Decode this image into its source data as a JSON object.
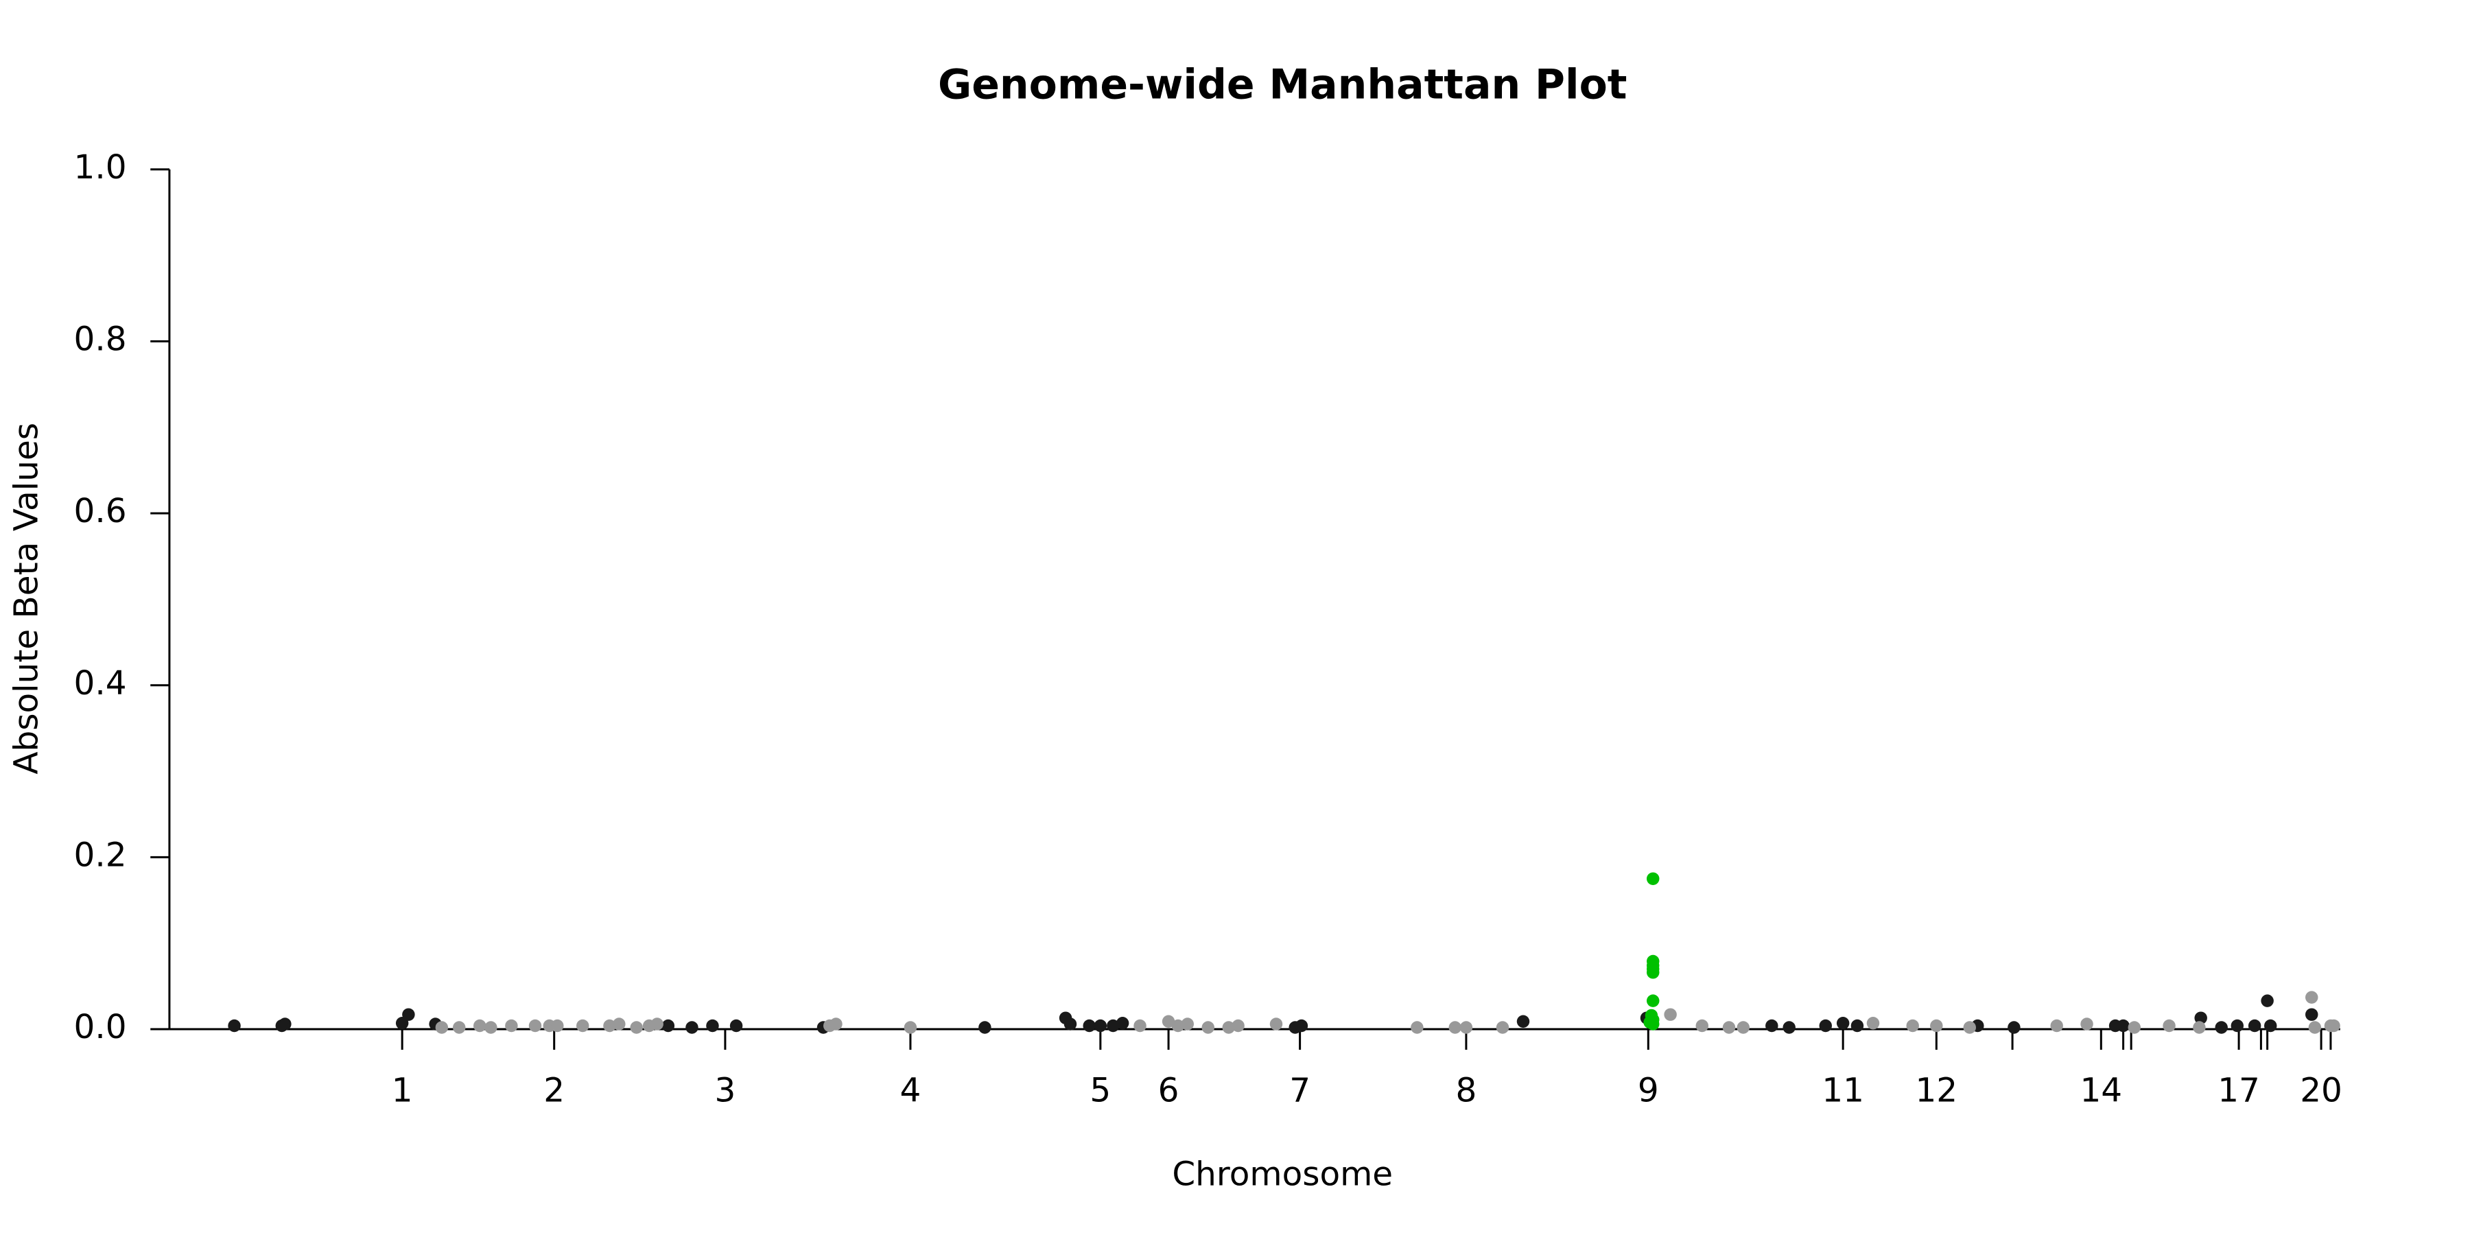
{
  "chart_data": {
    "type": "scatter",
    "title": "Genome-wide Manhattan Plot",
    "x_label": "Chromosome",
    "y_label": "Absolute Beta Values",
    "xlim": [
      0,
      1371
    ],
    "ylim": [
      0,
      1
    ],
    "yticks": [
      {
        "value": 0,
        "label": "0.0"
      },
      {
        "value": 0.2,
        "label": "0.2"
      },
      {
        "value": 0.4,
        "label": "0.4"
      },
      {
        "value": 0.6,
        "label": "0.6"
      },
      {
        "value": 0.8,
        "label": "0.8"
      },
      {
        "value": 1,
        "label": "1.0"
      }
    ],
    "xticks": [
      {
        "value": 147,
        "label": "1"
      },
      {
        "value": 243,
        "label": "2"
      },
      {
        "value": 351,
        "label": "3"
      },
      {
        "value": 468,
        "label": "4"
      },
      {
        "value": 588,
        "label": "5"
      },
      {
        "value": 631,
        "label": "6"
      },
      {
        "value": 714,
        "label": "7"
      },
      {
        "value": 819,
        "label": "8"
      },
      {
        "value": 934,
        "label": "9"
      },
      {
        "value": 1057,
        "label": "11"
      },
      {
        "value": 1116,
        "label": "12"
      },
      {
        "value": 1164,
        "label": null
      },
      {
        "value": 1220,
        "label": "14"
      },
      {
        "value": 1234,
        "label": null
      },
      {
        "value": 1239,
        "label": null
      },
      {
        "value": 1307,
        "label": "17"
      },
      {
        "value": 1321,
        "label": null
      },
      {
        "value": 1325,
        "label": null
      },
      {
        "value": 1359,
        "label": "20"
      },
      {
        "value": 1365,
        "label": null
      }
    ],
    "series": [
      {
        "color": "#1a1a1a",
        "x": [
          41,
          71,
          73,
          147,
          151,
          168,
          315,
          330,
          343,
          358,
          413,
          515,
          566,
          569,
          581,
          588,
          596,
          602,
          711,
          715,
          855,
          933,
          1012,
          1023,
          1046,
          1057,
          1066,
          1142,
          1165,
          1229,
          1234,
          1283,
          1296,
          1306,
          1317,
          1325,
          1327,
          1353
        ],
        "values": [
          0.004,
          0.004,
          0.006,
          0.007,
          0.017,
          0.006,
          0.004,
          0.002,
          0.004,
          0.004,
          0.002,
          0.002,
          0.013,
          0.006,
          0.004,
          0.004,
          0.004,
          0.007,
          0.002,
          0.004,
          0.009,
          0.013,
          0.004,
          0.002,
          0.004,
          0.007,
          0.004,
          0.004,
          0.002,
          0.004,
          0.004,
          0.013,
          0.002,
          0.004,
          0.004,
          0.033,
          0.004,
          0.017
        ]
      },
      {
        "color": "#999999",
        "x": [
          172,
          183,
          196,
          203,
          216,
          231,
          240,
          245,
          261,
          278,
          284,
          295,
          303,
          308,
          417,
          421,
          468,
          613,
          631,
          637,
          643,
          656,
          669,
          675,
          699,
          788,
          812,
          819,
          842,
          948,
          968,
          985,
          994,
          1076,
          1101,
          1116,
          1137,
          1192,
          1211,
          1241,
          1263,
          1282,
          1353,
          1355,
          1365,
          1367
        ],
        "values": [
          0.002,
          0.002,
          0.004,
          0.002,
          0.004,
          0.004,
          0.004,
          0.004,
          0.004,
          0.004,
          0.006,
          0.002,
          0.004,
          0.006,
          0.004,
          0.006,
          0.002,
          0.004,
          0.009,
          0.004,
          0.006,
          0.002,
          0.002,
          0.004,
          0.006,
          0.002,
          0.002,
          0.002,
          0.002,
          0.017,
          0.004,
          0.002,
          0.002,
          0.007,
          0.004,
          0.004,
          0.002,
          0.004,
          0.006,
          0.002,
          0.004,
          0.002,
          0.037,
          0.002,
          0.004,
          0.004
        ]
      },
      {
        "color": "#00c000",
        "x": [
          937,
          937,
          937,
          937,
          937,
          937,
          936,
          937,
          935,
          937
        ],
        "values": [
          0.175,
          0.079,
          0.074,
          0.07,
          0.066,
          0.033,
          0.016,
          0.011,
          0.008,
          0.006
        ]
      }
    ]
  }
}
